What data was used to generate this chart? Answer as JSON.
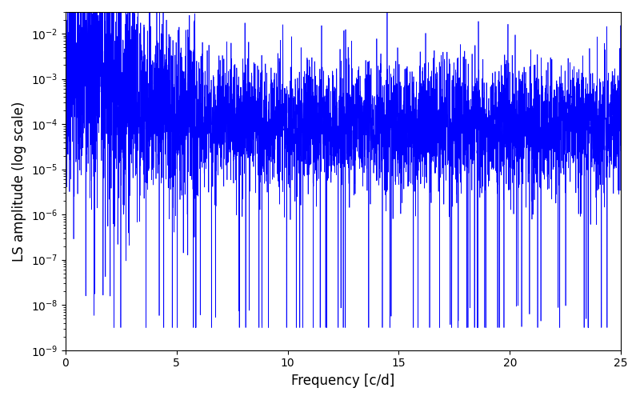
{
  "line_color": "#0000ff",
  "xlabel": "Frequency [c/d]",
  "ylabel": "LS amplitude (log scale)",
  "xlim": [
    0,
    25
  ],
  "ylim": [
    1e-09,
    0.03
  ],
  "xmin": 0.0,
  "xmax": 25.0,
  "n_points": 5000,
  "seed": 42,
  "line_width": 0.5,
  "figsize": [
    8.0,
    5.0
  ],
  "dpi": 100,
  "background_color": "#ffffff",
  "xticks": [
    0,
    5,
    10,
    15,
    20,
    25
  ]
}
